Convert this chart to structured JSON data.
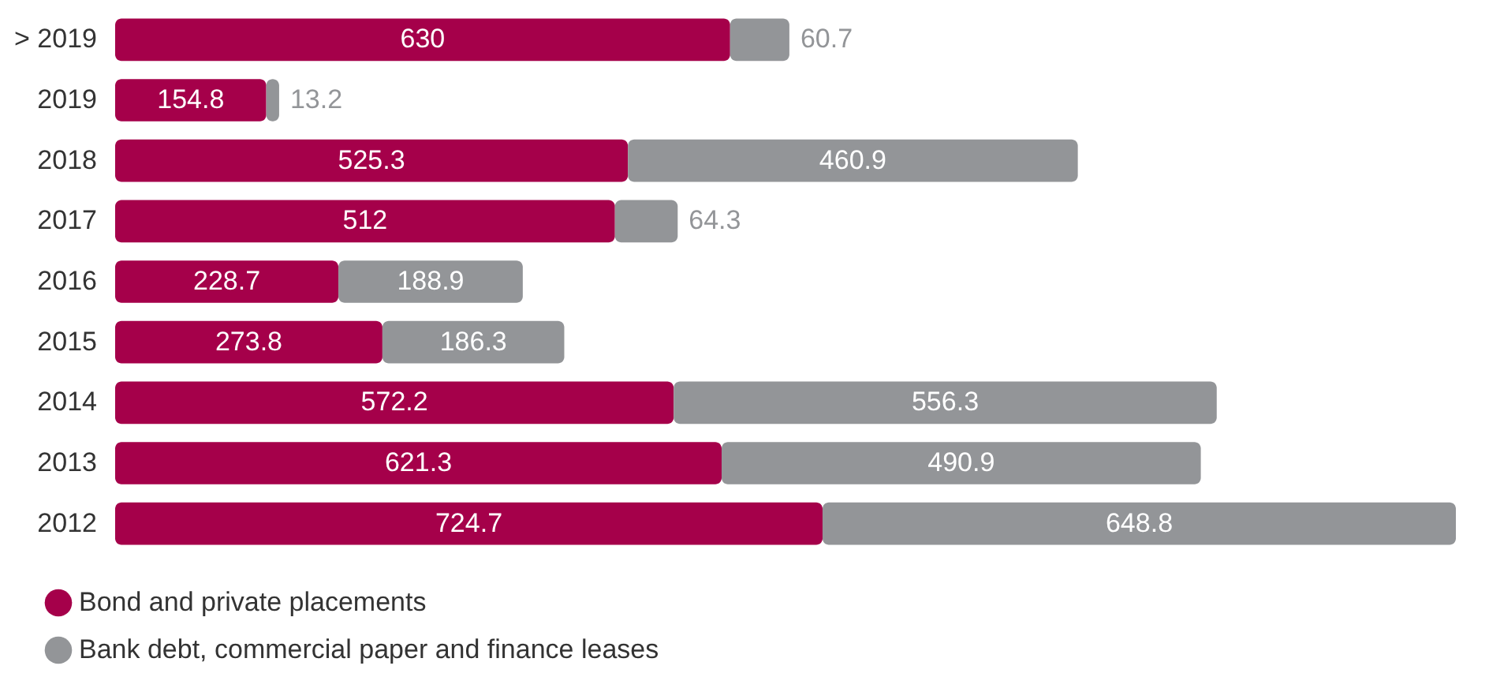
{
  "chart_data": {
    "type": "bar",
    "orientation": "horizontal",
    "stacked": true,
    "data_labels": true,
    "legend": "bottom left",
    "categories": [
      "> 2019",
      "2019",
      "2018",
      "2017",
      "2016",
      "2015",
      "2014",
      "2013",
      "2012"
    ],
    "series": [
      {
        "name": "Bond and private placements",
        "color": "#a5004a",
        "values": [
          630,
          154.8,
          525.3,
          512,
          228.7,
          273.8,
          572.2,
          621.3,
          724.7
        ]
      },
      {
        "name": "Bank debt, commercial paper and finance leases",
        "color": "#939598",
        "values": [
          60.7,
          13.2,
          460.9,
          64.3,
          188.9,
          186.3,
          556.3,
          490.9,
          648.8
        ]
      }
    ]
  }
}
